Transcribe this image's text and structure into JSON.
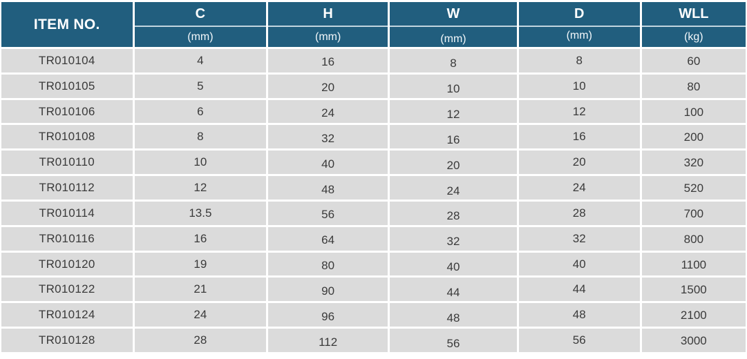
{
  "colors": {
    "header_bg": "#215E7E",
    "header_text": "#FFFFFF",
    "subheader_line": "#C2D6E0",
    "row_bg": "#DBDBDB",
    "separator": "#FFFFFF",
    "body_text": "#3A3A3A",
    "page_bg": "#FFFFFF"
  },
  "chart_data": {
    "type": "table",
    "title": "",
    "header": {
      "item_label": "ITEM NO.",
      "spec_columns": [
        {
          "label": "C",
          "unit": "(mm)"
        },
        {
          "label": "H",
          "unit": "(mm)"
        },
        {
          "label": "W",
          "unit": "(mm)"
        },
        {
          "label": "D",
          "unit": "(mm)"
        },
        {
          "label": "WLL",
          "unit": "(kg)"
        }
      ]
    },
    "columns": [
      "ITEM NO.",
      "C (mm)",
      "H (mm)",
      "W (mm)",
      "D (mm)",
      "WLL (kg)"
    ],
    "rows": [
      [
        "TR010104",
        "4",
        "16",
        "8",
        "8",
        "60"
      ],
      [
        "TR010105",
        "5",
        "20",
        "10",
        "10",
        "80"
      ],
      [
        "TR010106",
        "6",
        "24",
        "12",
        "12",
        "100"
      ],
      [
        "TR010108",
        "8",
        "32",
        "16",
        "16",
        "200"
      ],
      [
        "TR010110",
        "10",
        "40",
        "20",
        "20",
        "320"
      ],
      [
        "TR010112",
        "12",
        "48",
        "24",
        "24",
        "520"
      ],
      [
        "TR010114",
        "13.5",
        "56",
        "28",
        "28",
        "700"
      ],
      [
        "TR010116",
        "16",
        "64",
        "32",
        "32",
        "800"
      ],
      [
        "TR010120",
        "19",
        "80",
        "40",
        "40",
        "1100"
      ],
      [
        "TR010122",
        "21",
        "90",
        "44",
        "44",
        "1500"
      ],
      [
        "TR010124",
        "24",
        "96",
        "48",
        "48",
        "2100"
      ],
      [
        "TR010128",
        "28",
        "112",
        "56",
        "56",
        "3000"
      ]
    ]
  }
}
